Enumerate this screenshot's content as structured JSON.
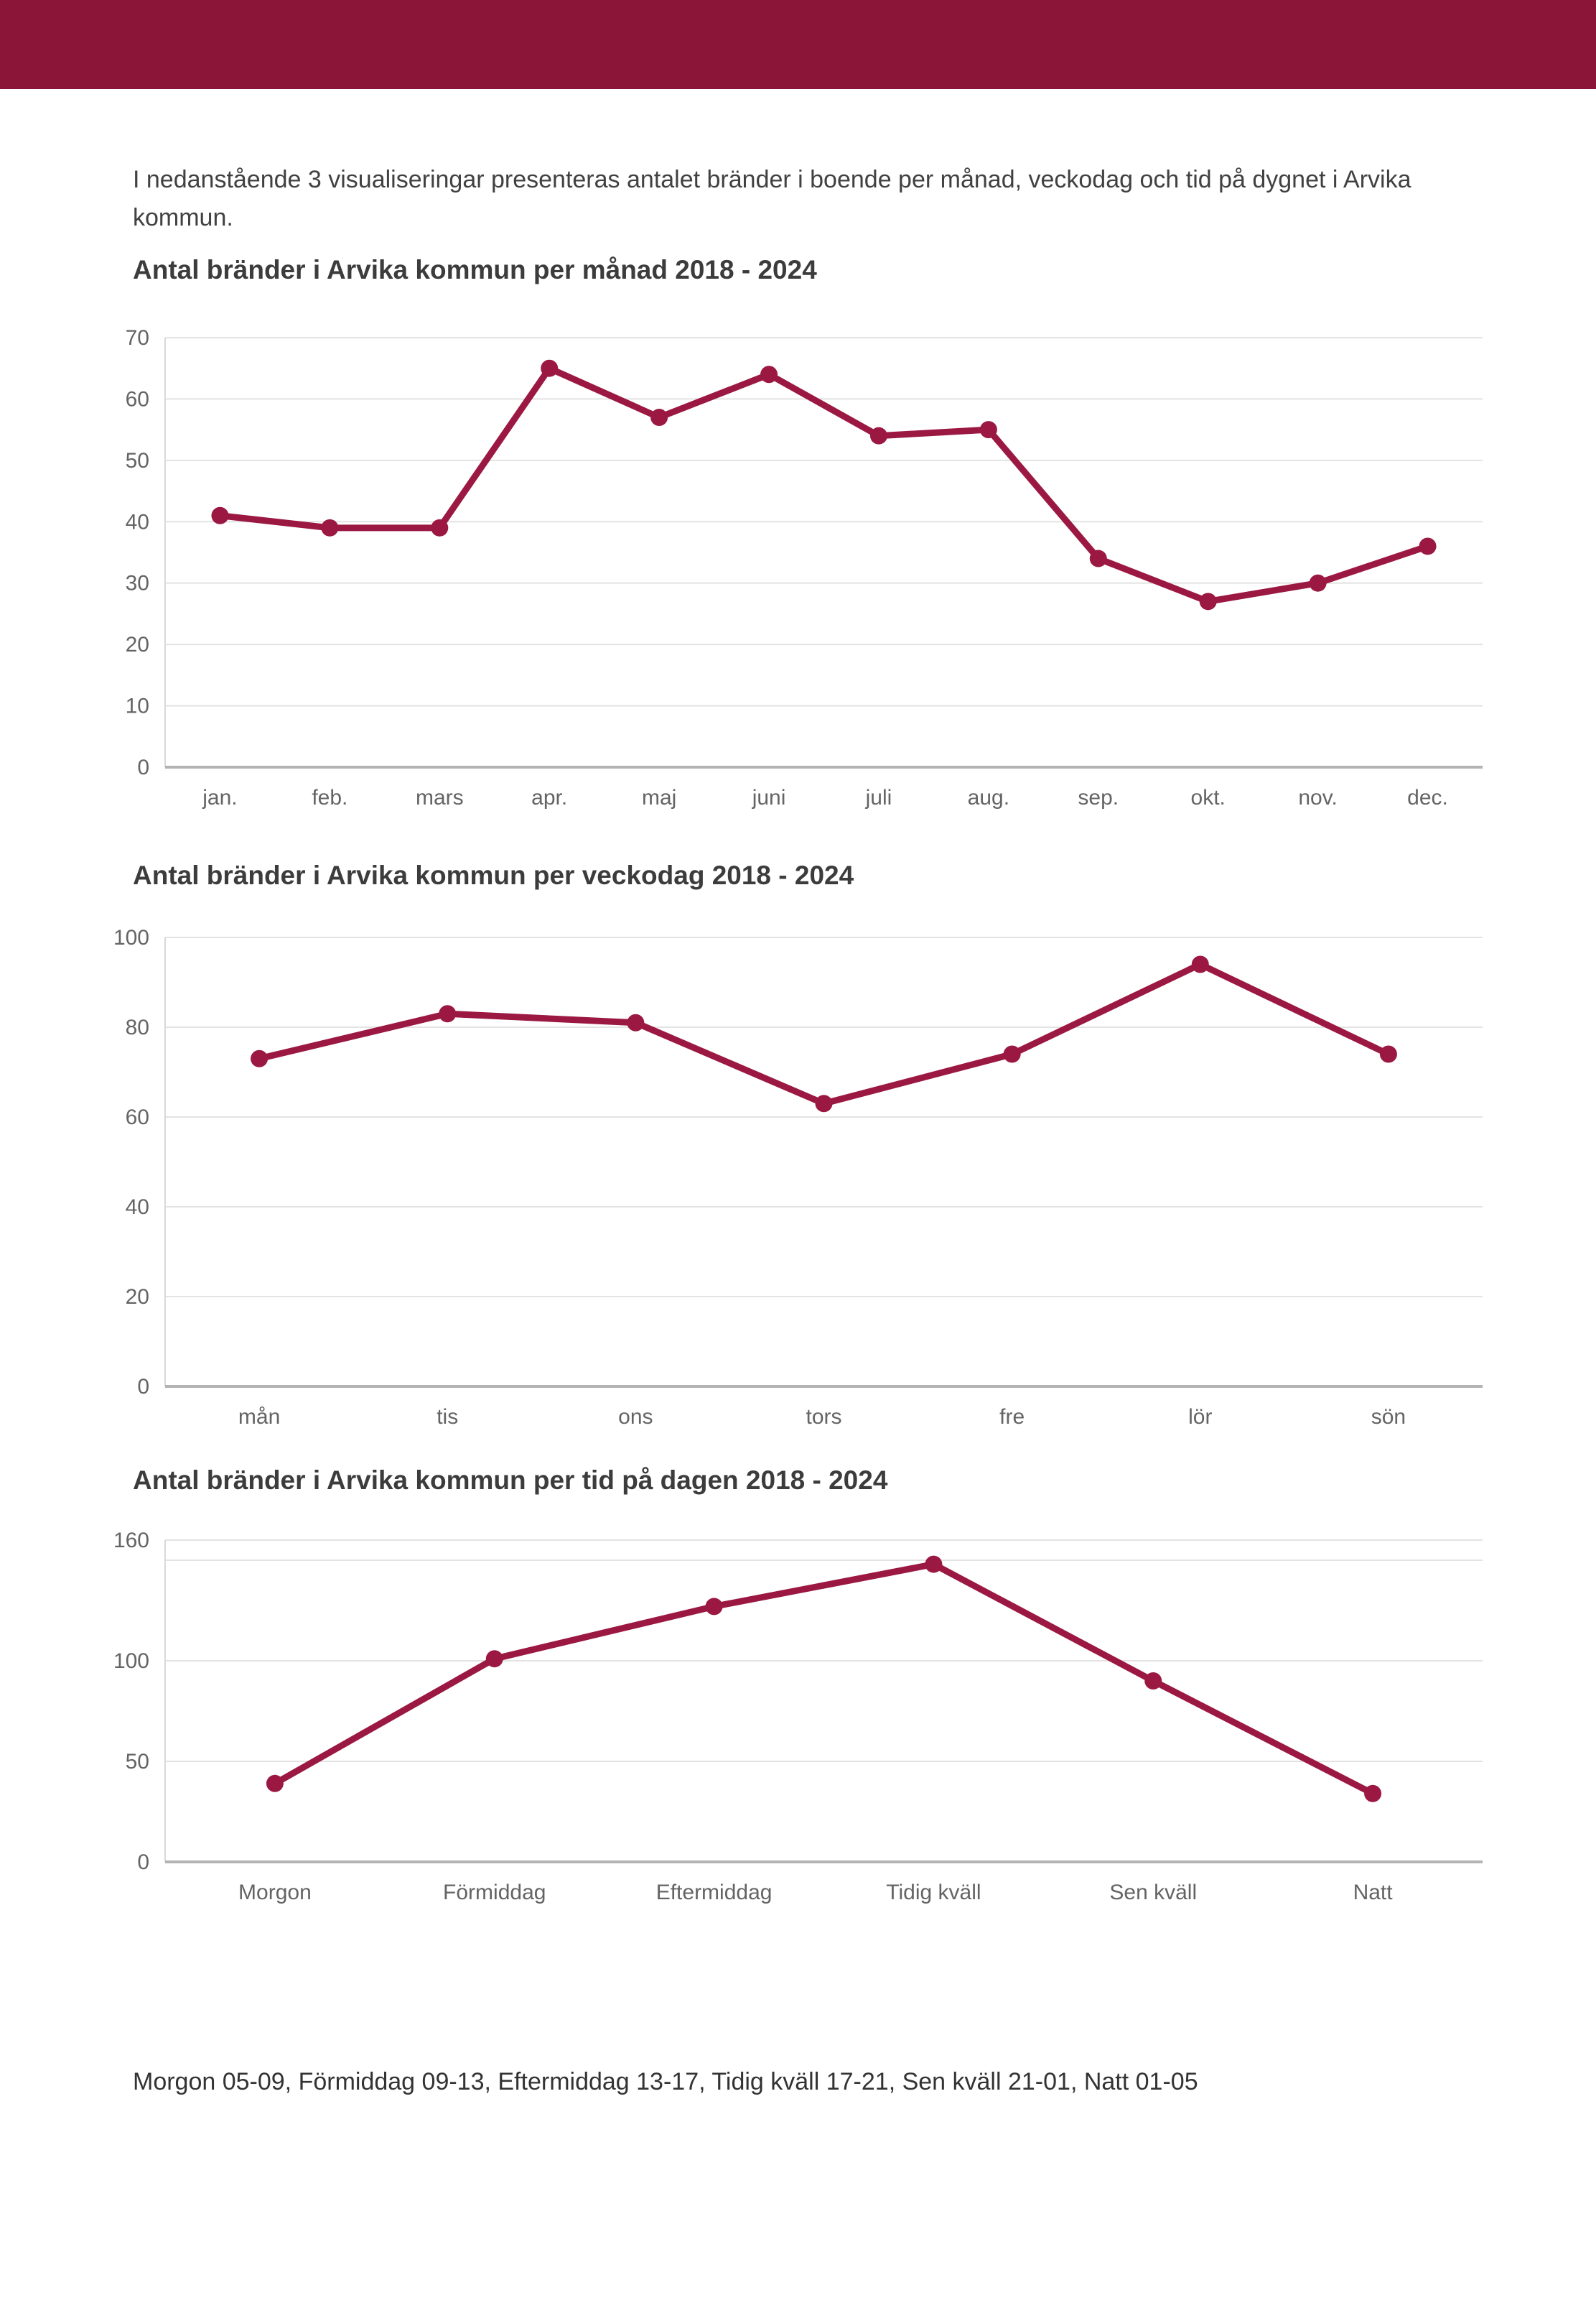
{
  "colors": {
    "header_bar": "#8B1539",
    "line": "#9B1843",
    "gridline": "#e3e3e3",
    "axis": "#b3b3b3",
    "title_text": "#3C3C3C",
    "body_text": "#414141",
    "tick_text": "#646464"
  },
  "intro": {
    "text": "I nedanstående 3 visualiseringar presenteras antalet bränder i boende per månad, veckodag och tid på dygnet i Arvika kommun."
  },
  "caption": {
    "text": "Morgon 05-09, Förmiddag 09-13, Eftermiddag 13-17, Tidig kväll 17-21, Sen kväll 21-01, Natt 01-05"
  },
  "chart_data": [
    {
      "type": "line",
      "title": "Antal bränder i Arvika kommun per månad 2018 - 2024",
      "categories": [
        "jan.",
        "feb.",
        "mars",
        "apr.",
        "maj",
        "juni",
        "juli",
        "aug.",
        "sep.",
        "okt.",
        "nov.",
        "dec."
      ],
      "values": [
        41,
        39,
        39,
        65,
        57,
        64,
        54,
        55,
        34,
        27,
        30,
        36
      ],
      "xlabel": "",
      "ylabel": "",
      "ylim": [
        0,
        70
      ],
      "yticks": [
        0,
        10,
        20,
        30,
        40,
        50,
        60,
        70
      ],
      "gridlines": [
        10,
        20,
        30,
        40,
        50,
        60,
        70
      ],
      "grid": true,
      "legend": false
    },
    {
      "type": "line",
      "title": "Antal bränder i Arvika kommun per veckodag 2018 - 2024",
      "categories": [
        "mån",
        "tis",
        "ons",
        "tors",
        "fre",
        "lör",
        "sön"
      ],
      "values": [
        73,
        83,
        81,
        63,
        74,
        94,
        74
      ],
      "xlabel": "",
      "ylabel": "",
      "ylim": [
        0,
        100
      ],
      "yticks": [
        0,
        20,
        40,
        60,
        80,
        100
      ],
      "gridlines": [
        20,
        40,
        60,
        80,
        100
      ],
      "grid": true,
      "legend": false
    },
    {
      "type": "line",
      "title": "Antal bränder i Arvika kommun per tid på dagen 2018 - 2024",
      "categories": [
        "Morgon",
        "Förmiddag",
        "Eftermiddag",
        "Tidig kväll",
        "Sen kväll",
        "Natt"
      ],
      "values": [
        39,
        101,
        127,
        148,
        90,
        34
      ],
      "xlabel": "",
      "ylabel": "",
      "ylim": [
        0,
        160
      ],
      "yticks": [
        0,
        50,
        100,
        160
      ],
      "gridlines": [
        50,
        100,
        150,
        160
      ],
      "grid": true,
      "legend": false
    }
  ]
}
